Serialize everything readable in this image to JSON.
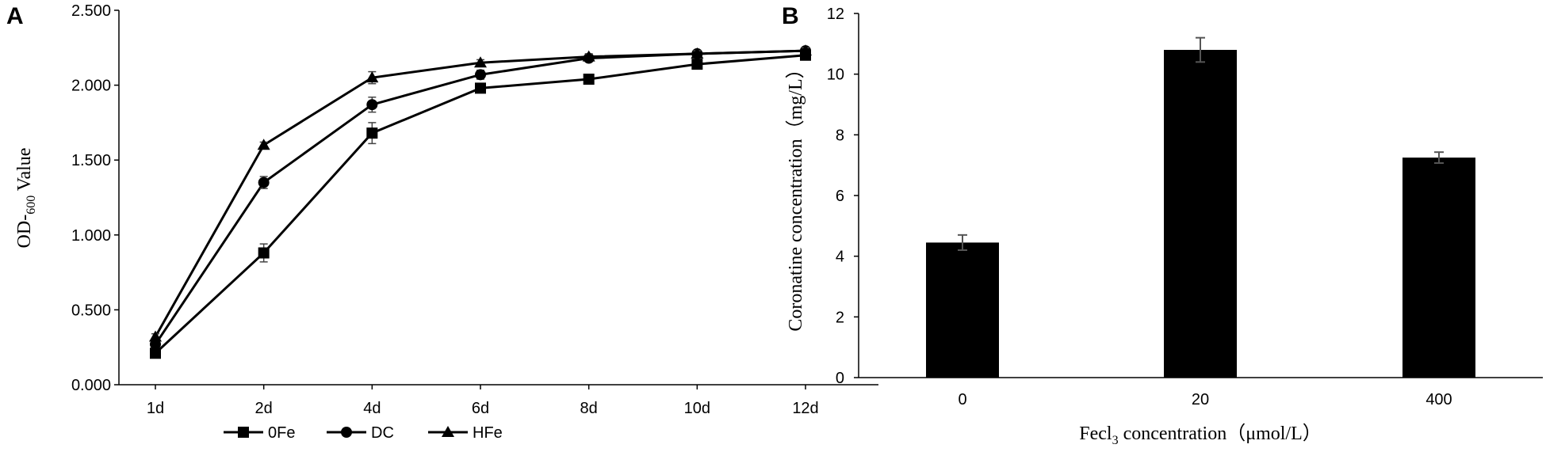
{
  "chart_data": [
    {
      "panel_label": "A",
      "type": "line",
      "categories": [
        "1d",
        "2d",
        "4d",
        "6d",
        "8d",
        "10d",
        "12d"
      ],
      "ylabel_prefix": "OD-",
      "ylabel_sub": "600",
      "ylabel_suffix": " Value",
      "ylim": [
        0,
        2.5
      ],
      "yticks": [
        "0.000",
        "0.500",
        "1.000",
        "1.500",
        "2.000",
        "2.500"
      ],
      "grid": false,
      "legend_position": "bottom",
      "series": [
        {
          "name": "0Fe",
          "marker": "square",
          "values": [
            0.21,
            0.88,
            1.68,
            1.98,
            2.04,
            2.14,
            2.2
          ],
          "errors": [
            0.02,
            0.06,
            0.07,
            0.03,
            0.02,
            0.02,
            0.02
          ]
        },
        {
          "name": "DC",
          "marker": "circle",
          "values": [
            0.27,
            1.35,
            1.87,
            2.07,
            2.18,
            2.21,
            2.23
          ],
          "errors": [
            0.02,
            0.04,
            0.05,
            0.03,
            0.02,
            0.02,
            0.02
          ]
        },
        {
          "name": "HFe",
          "marker": "triangle",
          "values": [
            0.32,
            1.6,
            2.05,
            2.15,
            2.19,
            2.21,
            2.23
          ],
          "errors": [
            0.02,
            0.02,
            0.04,
            0.02,
            0.02,
            0.02,
            0.02
          ]
        }
      ]
    },
    {
      "panel_label": "B",
      "type": "bar",
      "categories": [
        "0",
        "20",
        "400"
      ],
      "values": [
        4.45,
        10.8,
        7.25
      ],
      "errors": [
        0.25,
        0.4,
        0.18
      ],
      "ylabel": "Coronatine concentration（mg/L）",
      "xlabel_prefix": "Fecl",
      "xlabel_sub": "3",
      "xlabel_suffix": " concentration（μmol/L）",
      "ylim": [
        0,
        12
      ],
      "yticks": [
        "0",
        "2",
        "4",
        "6",
        "8",
        "10",
        "12"
      ],
      "grid": false,
      "bar_color": "#000000"
    }
  ]
}
